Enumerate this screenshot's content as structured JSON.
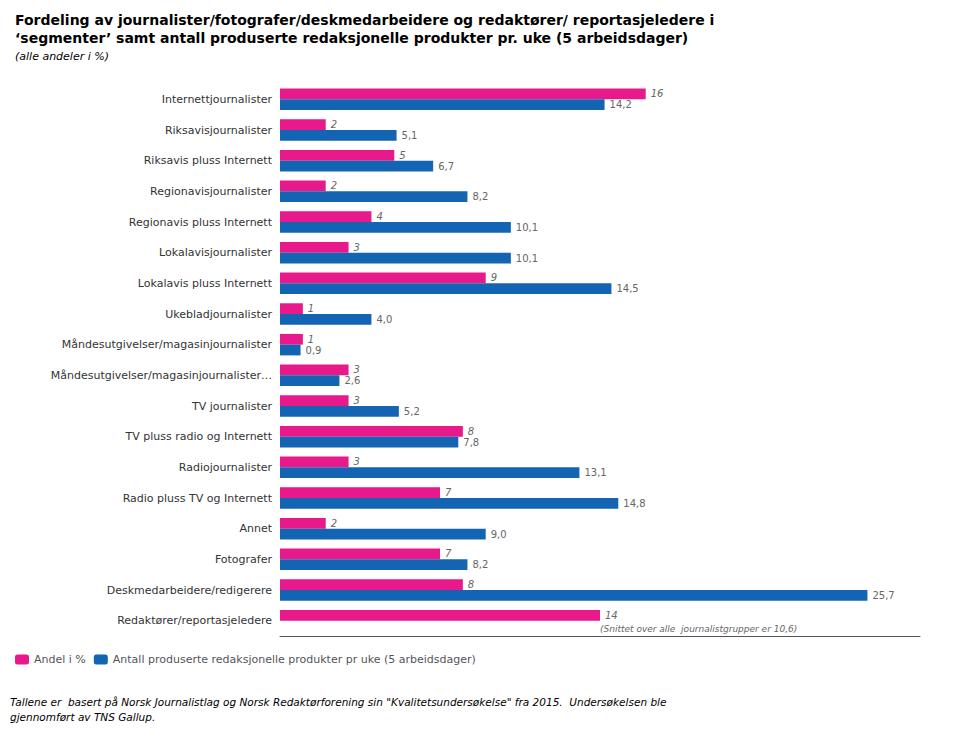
{
  "chart_data": {
    "type": "bar",
    "orientation": "horizontal",
    "title": "Fordeling av journalister/fotografer/deskmedarbeidere og redaktører/ reportasjeledere i\n‘segmenter’ samt antall produserte redaksjonelle produkter pr. uke (5 arbeidsdager)",
    "subtitle": "(alle andeler i %)",
    "categories": [
      "Internettjournalister",
      "Riksavisjournalister",
      "Riksavis pluss Internett",
      "Regionavisjournalister",
      "Regionavis pluss Internett",
      "Lokalavisjournalister",
      "Lokalavis pluss Internett",
      "Ukebladjournalister",
      "Måndesutgivelser/magasinjournalister",
      "Måndesutgivelser/magasinjournalister…",
      "TV journalister",
      "TV pluss radio og Internett",
      "Radiojournalister",
      "Radio pluss TV og Internett",
      "Annet",
      "Fotografer",
      "Deskmedarbeidere/redigerere",
      "Redaktører/reportasjeledere"
    ],
    "series": [
      {
        "name": "Andel i %",
        "color": "#E8198A",
        "values": [
          16,
          2,
          5,
          2,
          4,
          3,
          9,
          1,
          1,
          3,
          3,
          8,
          3,
          7,
          2,
          7,
          8,
          14
        ]
      },
      {
        "name": "Antall produserte redaksjonelle produkter pr uke (5 arbeidsdager)",
        "color": "#1464B4",
        "values": [
          14.2,
          5.1,
          6.7,
          8.2,
          10.1,
          10.1,
          14.5,
          4.0,
          0.9,
          2.6,
          5.2,
          7.8,
          13.1,
          14.8,
          9.0,
          8.2,
          25.7,
          null
        ],
        "value_labels": [
          "14,2",
          "5,1",
          "6,7",
          "8,2",
          "10,1",
          "10,1",
          "14,5",
          "4,0",
          "0,9",
          "2,6",
          "5,2",
          "7,8",
          "13,1",
          "14,8",
          "9,0",
          "8,2",
          "25,7",
          null
        ]
      }
    ],
    "xlim": [
      0,
      28
    ],
    "tick_labels": "y",
    "grid": false,
    "legend": "lower left",
    "data_labels": true,
    "annotations": [
      "(Snittet over alle  journalistgrupper er 10,6)"
    ],
    "footnote": "Tallene er  basert på Norsk Journalistlag og Norsk Redaktørforening sin \"Kvalitetsundersøkelse\" fra 2015.  Undersøkelsen ble\ngjennomført av TNS Gallup."
  }
}
